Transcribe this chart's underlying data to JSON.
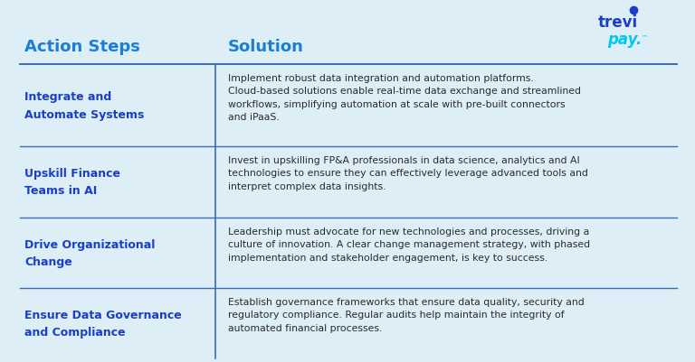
{
  "background_color": "#ddeef6",
  "header_col1": "Action Steps",
  "header_col2": "Solution",
  "header_color": "#1a7fd4",
  "header_fontsize": 13,
  "divider_color": "#3a6db5",
  "col1_bold_color": "#1a3ec8",
  "col2_color": "#2a2a2a",
  "col1_fontsize": 9.0,
  "col2_fontsize": 7.8,
  "rows": [
    {
      "action": "Integrate and\nAutomate Systems",
      "solution": "Implement robust data integration and automation platforms.\nCloud-based solutions enable real-time data exchange and streamlined\nworkflows, simplifying automation at scale with pre-built connectors\nand iPaaS."
    },
    {
      "action": "Upskill Finance\nTeams in AI",
      "solution": "Invest in upskilling FP&A professionals in data science, analytics and AI\ntechnologies to ensure they can effectively leverage advanced tools and\ninterpret complex data insights."
    },
    {
      "action": "Drive Organizational\nChange",
      "solution": "Leadership must advocate for new technologies and processes, driving a\nculture of innovation. A clear change management strategy, with phased\nimplementation and stakeholder engagement, is key to success."
    },
    {
      "action": "Ensure Data Governance\nand Compliance",
      "solution": "Establish governance frameworks that ensure data quality, security and\nregulatory compliance. Regular audits help maintain the integrity of\nautomated financial processes."
    }
  ],
  "logo_trevi": "trevi",
  "logo_pay": "pay.",
  "logo_tm": "™",
  "logo_trevi_color": "#1a3ec8",
  "logo_pay_color": "#00c8f0",
  "logo_dot_color": "#1a3ec8"
}
